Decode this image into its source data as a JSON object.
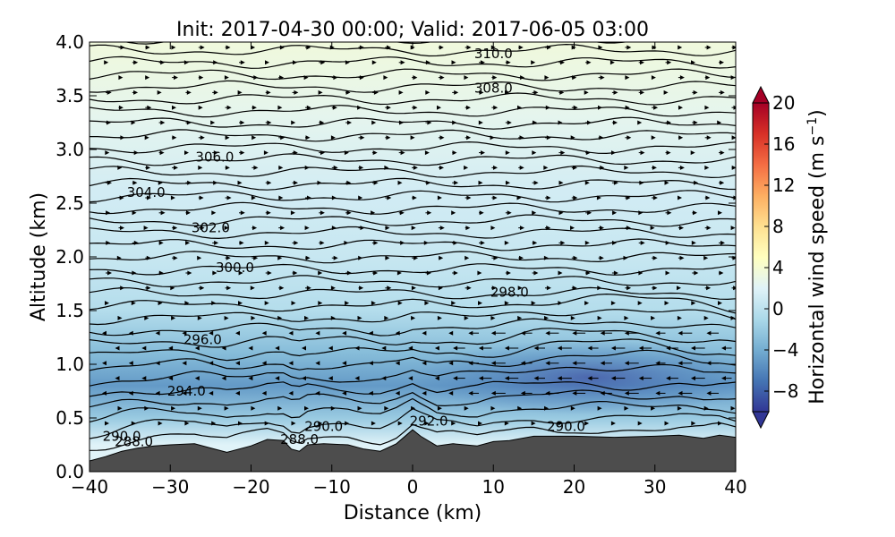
{
  "chart_data": {
    "type": "cross-section",
    "title": "Init: 2017-04-30 00:00; Valid: 2017-06-05 03:00",
    "xlabel": "Distance (km)",
    "ylabel": "Altitude (km)",
    "xlim": [
      -40,
      40
    ],
    "ylim": [
      0.0,
      4.0
    ],
    "xticks": [
      -40,
      -30,
      -20,
      -10,
      0,
      10,
      20,
      30,
      40
    ],
    "xtick_labels": [
      "−40",
      "−30",
      "−20",
      "−10",
      "0",
      "10",
      "20",
      "30",
      "40"
    ],
    "yticks": [
      0.0,
      0.5,
      1.0,
      1.5,
      2.0,
      2.5,
      3.0,
      3.5,
      4.0
    ],
    "ytick_labels": [
      "0.0",
      "0.5",
      "1.0",
      "1.5",
      "2.0",
      "2.5",
      "3.0",
      "3.5",
      "4.0"
    ],
    "colorbar": {
      "label_prefix": "Horizontal wind speed (m s",
      "label_exp": "−1",
      "label_suffix": ")",
      "range": [
        -10,
        20
      ],
      "ticks": [
        20,
        16,
        12,
        8,
        4,
        0,
        -4,
        -8
      ],
      "tick_labels": [
        "20",
        "16",
        "12",
        "8",
        "4",
        "0",
        "−4",
        "−8"
      ],
      "colors": [
        "#313695",
        "#4575b4",
        "#74add1",
        "#abd9e9",
        "#e0f3f8",
        "#ffffbf",
        "#fee090",
        "#fdae61",
        "#f46d43",
        "#d73027",
        "#a50026"
      ]
    },
    "wind_field": {
      "background": [
        {
          "altitude_km": 4.0,
          "speed": 3.5
        },
        {
          "altitude_km": 3.3,
          "speed": 2.5
        },
        {
          "altitude_km": 2.6,
          "speed": 1.2
        },
        {
          "altitude_km": 2.0,
          "speed": 0.6
        },
        {
          "altitude_km": 1.5,
          "speed": -0.5
        },
        {
          "altitude_km": 1.1,
          "speed": -3.0
        },
        {
          "altitude_km": 0.8,
          "speed": -5.0
        },
        {
          "altitude_km": 0.5,
          "speed": -2.0
        },
        {
          "altitude_km": 0.25,
          "speed": 2.0
        }
      ],
      "jet_core": {
        "x_km": 22,
        "altitude_km": 0.88,
        "speed": -8
      }
    },
    "contour_labels": [
      {
        "text": "310.0",
        "x_km": 10,
        "altitude_km": 3.89
      },
      {
        "text": "308.0",
        "x_km": 10,
        "altitude_km": 3.57
      },
      {
        "text": "306.0",
        "x_km": -24.5,
        "altitude_km": 2.93
      },
      {
        "text": "304.0",
        "x_km": -33,
        "altitude_km": 2.6
      },
      {
        "text": "302.0",
        "x_km": -25,
        "altitude_km": 2.27
      },
      {
        "text": "300.0",
        "x_km": -22,
        "altitude_km": 1.9
      },
      {
        "text": "298.0",
        "x_km": 12,
        "altitude_km": 1.67
      },
      {
        "text": "296.0",
        "x_km": -26,
        "altitude_km": 1.23
      },
      {
        "text": "294.0",
        "x_km": -28,
        "altitude_km": 0.75
      },
      {
        "text": "292.0",
        "x_km": 2,
        "altitude_km": 0.47
      },
      {
        "text": "290.0",
        "x_km": 19,
        "altitude_km": 0.42
      },
      {
        "text": "290.0",
        "x_km": -11,
        "altitude_km": 0.42
      },
      {
        "text": "290.0",
        "x_km": -36,
        "altitude_km": 0.33
      },
      {
        "text": "288.0",
        "x_km": -34.5,
        "altitude_km": 0.28
      },
      {
        "text": "288.0",
        "x_km": -14,
        "altitude_km": 0.3
      }
    ],
    "terrain_km": [
      [
        -40,
        0.1
      ],
      [
        -38,
        0.14
      ],
      [
        -36,
        0.19
      ],
      [
        -34,
        0.22
      ],
      [
        -32,
        0.24
      ],
      [
        -30,
        0.25
      ],
      [
        -27,
        0.26
      ],
      [
        -25,
        0.22
      ],
      [
        -23,
        0.18
      ],
      [
        -20,
        0.24
      ],
      [
        -18,
        0.3
      ],
      [
        -16,
        0.29
      ],
      [
        -15,
        0.21
      ],
      [
        -14,
        0.19
      ],
      [
        -13,
        0.25
      ],
      [
        -11,
        0.26
      ],
      [
        -8,
        0.25
      ],
      [
        -6,
        0.21
      ],
      [
        -4,
        0.19
      ],
      [
        -2,
        0.26
      ],
      [
        0,
        0.39
      ],
      [
        1,
        0.33
      ],
      [
        3,
        0.24
      ],
      [
        5,
        0.26
      ],
      [
        8,
        0.24
      ],
      [
        10,
        0.28
      ],
      [
        12,
        0.29
      ],
      [
        15,
        0.33
      ],
      [
        20,
        0.33
      ],
      [
        25,
        0.32
      ],
      [
        30,
        0.33
      ],
      [
        33,
        0.34
      ],
      [
        36,
        0.31
      ],
      [
        38,
        0.34
      ],
      [
        40,
        0.32
      ]
    ]
  }
}
